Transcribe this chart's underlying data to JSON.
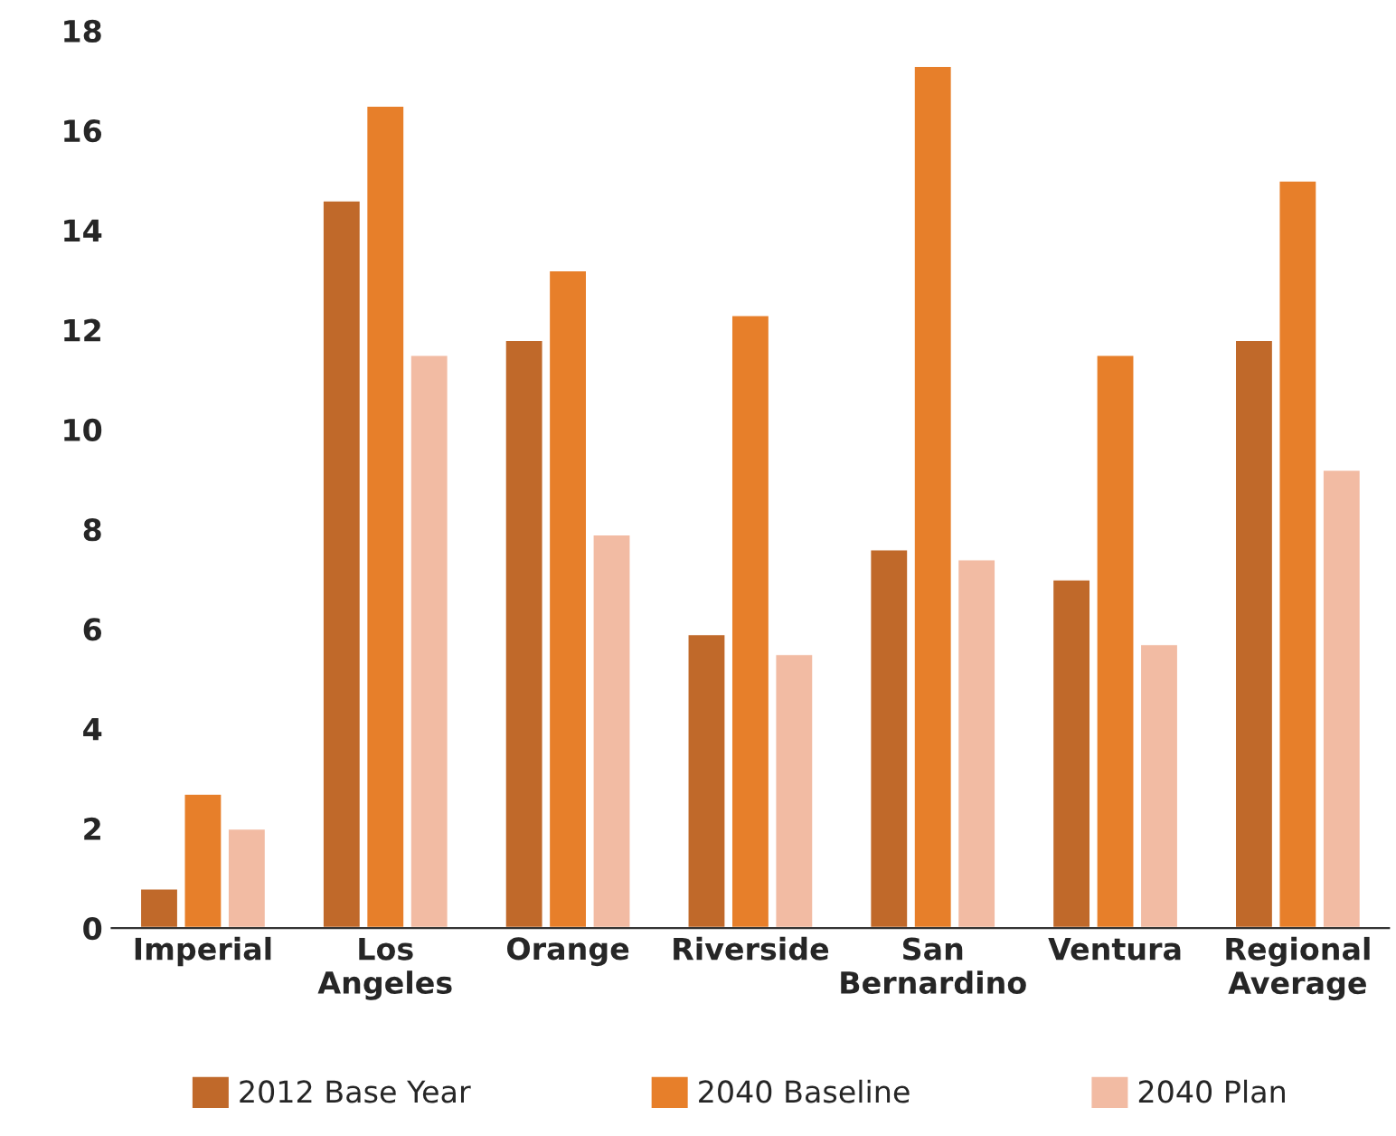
{
  "chart_data": {
    "type": "bar",
    "categories": [
      "Imperial",
      "Los\nAngeles",
      "Orange",
      "Riverside",
      "San\nBernardino",
      "Ventura",
      "Regional\nAverage"
    ],
    "series": [
      {
        "name": "2012 Base Year",
        "color": "#c0692a",
        "values": [
          0.8,
          14.6,
          11.8,
          5.9,
          7.6,
          7.0,
          11.8
        ]
      },
      {
        "name": "2040 Baseline",
        "color": "#e77f2a",
        "values": [
          2.7,
          16.5,
          13.2,
          12.3,
          17.3,
          11.5,
          15.0
        ]
      },
      {
        "name": "2040 Plan",
        "color": "#f2bba3",
        "values": [
          2.0,
          11.5,
          7.9,
          5.5,
          7.4,
          5.7,
          9.2
        ]
      }
    ],
    "ylim": [
      0,
      18
    ],
    "yticks": [
      0,
      2,
      4,
      6,
      8,
      10,
      12,
      14,
      16,
      18
    ],
    "grid": false,
    "legend": "bottom"
  }
}
